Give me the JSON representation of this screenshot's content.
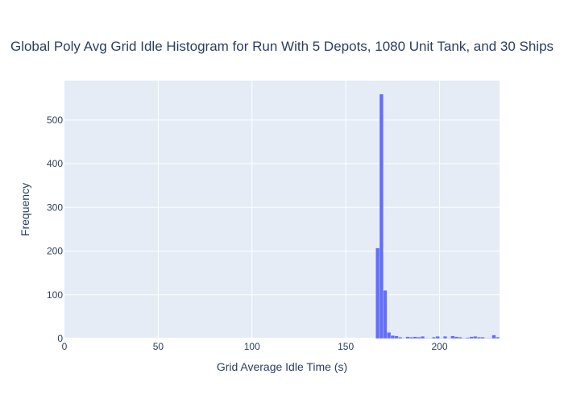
{
  "chart_data": {
    "type": "bar",
    "title": "Global Poly Avg Grid Idle Histogram for Run With 5 Depots, 1080 Unit Tank, and 30 Ships",
    "xlabel": "Grid Average Idle Time (s)",
    "ylabel": "Frequency",
    "xlim": [
      0,
      232
    ],
    "ylim": [
      0,
      590
    ],
    "x_ticks": [
      0,
      50,
      100,
      150,
      200
    ],
    "y_ticks": [
      0,
      100,
      200,
      300,
      400,
      500
    ],
    "grid": true,
    "bin_width": 2,
    "bin_starts": [
      166,
      168,
      170,
      172,
      174,
      176,
      178,
      180,
      182,
      184,
      186,
      188,
      190,
      192,
      194,
      196,
      198,
      200,
      202,
      204,
      206,
      208,
      210,
      212,
      214,
      216,
      218,
      220,
      222,
      224,
      226,
      228,
      230
    ],
    "values": [
      207,
      559,
      110,
      14,
      7,
      6,
      3,
      1,
      4,
      3,
      4,
      3,
      5,
      1,
      1,
      3,
      5,
      1,
      5,
      1,
      6,
      4,
      3,
      1,
      2,
      4,
      5,
      3,
      3,
      1,
      1,
      8,
      3
    ],
    "bar_color": "#636efa"
  }
}
